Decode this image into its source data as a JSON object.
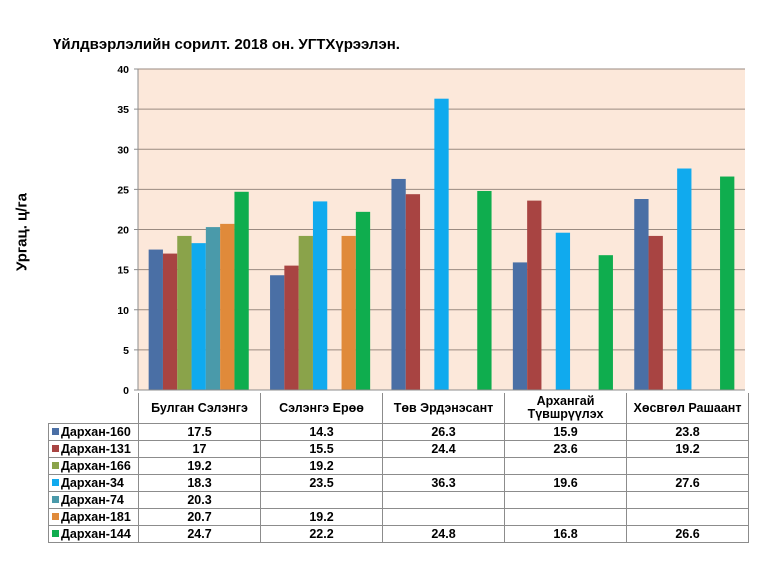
{
  "chart_data": {
    "type": "bar",
    "title": "Үйлдвэрлэлийн сорилт. 2018 он. УГТХүрээлэн.",
    "xlabel": "",
    "ylabel": "Ургац. ц/га",
    "ylim": [
      0,
      40
    ],
    "yticks": [
      "0",
      "5",
      "10",
      "15",
      "20",
      "25",
      "30",
      "35",
      "40"
    ],
    "grid": true,
    "legend": "data-table-below",
    "plot_background": "#fce8da",
    "categories": [
      "Булган Сэлэнгэ",
      "Сэлэнгэ Ерөө",
      "Төв Эрдэнэсант",
      "Архангай Түвшрүүлэх",
      "Хөсвгөл Рашаант"
    ],
    "series": [
      {
        "name": "Дархан-160",
        "color": "#4a6fa5",
        "values": [
          17.5,
          14.3,
          26.3,
          15.9,
          23.8
        ],
        "labels": [
          "17.5",
          "14.3",
          "26.3",
          "15.9",
          "23.8"
        ]
      },
      {
        "name": "Дархан-131",
        "color": "#a84442",
        "values": [
          17,
          15.5,
          24.4,
          23.6,
          19.2
        ],
        "labels": [
          "17",
          "15.5",
          "24.4",
          "23.6",
          "19.2"
        ]
      },
      {
        "name": "Дархан-166",
        "color": "#8aa34a",
        "values": [
          19.2,
          19.2,
          null,
          null,
          null
        ],
        "labels": [
          "19.2",
          "19.2",
          "",
          "",
          ""
        ]
      },
      {
        "name": "Дархан-34",
        "color": "#10aaee",
        "values": [
          18.3,
          23.5,
          36.3,
          19.6,
          27.6
        ],
        "labels": [
          "18.3",
          "23.5",
          "36.3",
          "19.6",
          "27.6"
        ]
      },
      {
        "name": "Дархан-74",
        "color": "#4a9aaa",
        "values": [
          20.3,
          null,
          null,
          null,
          null
        ],
        "labels": [
          "20.3",
          "",
          "",
          "",
          ""
        ]
      },
      {
        "name": "Дархан-181",
        "color": "#e08a3a",
        "values": [
          20.7,
          19.2,
          null,
          null,
          null
        ],
        "labels": [
          "20.7",
          "19.2",
          "",
          "",
          ""
        ]
      },
      {
        "name": "Дархан-144",
        "color": "#0fad4e",
        "values": [
          24.7,
          22.2,
          24.8,
          16.8,
          26.6
        ],
        "labels": [
          "24.7",
          "22.2",
          "24.8",
          "16.8",
          "26.6"
        ]
      }
    ]
  },
  "table": {
    "headers": [
      "Булган Сэлэнгэ",
      "Сэлэнгэ Ерөө",
      "Төв Эрдэнэсант",
      "Архангай Түвшрүүлэх",
      "Хөсвгөл Рашаант"
    ]
  }
}
